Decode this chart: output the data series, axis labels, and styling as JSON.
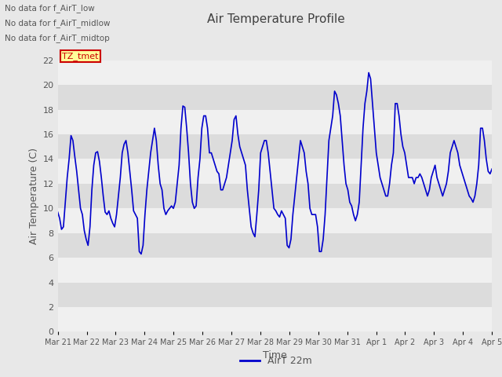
{
  "title": "Air Temperature Profile",
  "xlabel": "Time",
  "ylabel": "Air Temperature (C)",
  "line_color": "#0000CC",
  "line_width": 1.2,
  "ylim": [
    0,
    22
  ],
  "yticks": [
    0,
    2,
    4,
    6,
    8,
    10,
    12,
    14,
    16,
    18,
    20,
    22
  ],
  "bg_color": "#E8E8E8",
  "plot_bg_color": "#FFFFFF",
  "legend_label": "AirT 22m",
  "no_data_texts": [
    "No data for f_AirT_low",
    "No data for f_AirT_midlow",
    "No data for f_AirT_midtop"
  ],
  "legend_box_color": "#FFFF99",
  "legend_box_edge": "#CC0000",
  "legend_text_color": "#CC0000",
  "legend_box_text": "TZ_tmet",
  "x_tick_labels": [
    "Mar 21",
    "Mar 22",
    "Mar 23",
    "Mar 24",
    "Mar 25",
    "Mar 26",
    "Mar 27",
    "Mar 28",
    "Mar 29",
    "Mar 30",
    "Mar 31",
    "Apr 1",
    "Apr 2",
    "Apr 3",
    "Apr 4",
    "Apr 5"
  ],
  "title_color": "#404040",
  "axis_label_color": "#555555",
  "tick_label_color": "#555555",
  "band_colors": [
    "#F0F0F0",
    "#DCDCDC"
  ],
  "values": [
    9.7,
    9.2,
    8.3,
    8.5,
    10.5,
    12.5,
    14.0,
    15.9,
    15.5,
    14.2,
    13.0,
    11.5,
    10.0,
    9.5,
    8.2,
    7.5,
    7.0,
    8.5,
    11.5,
    13.5,
    14.5,
    14.6,
    13.8,
    12.5,
    11.0,
    9.7,
    9.5,
    9.8,
    9.2,
    8.8,
    8.5,
    9.5,
    11.0,
    12.5,
    14.5,
    15.2,
    15.5,
    14.5,
    13.0,
    11.5,
    9.8,
    9.5,
    9.2,
    6.5,
    6.3,
    7.0,
    9.5,
    11.5,
    13.0,
    14.5,
    15.5,
    16.5,
    15.5,
    13.5,
    12.0,
    11.5,
    10.0,
    9.5,
    9.8,
    10.0,
    10.2,
    10.0,
    10.5,
    12.0,
    13.5,
    16.5,
    18.3,
    18.2,
    16.5,
    14.5,
    12.0,
    10.5,
    10.0,
    10.2,
    12.5,
    14.0,
    16.5,
    17.5,
    17.5,
    16.5,
    14.5,
    14.5,
    14.0,
    13.5,
    13.0,
    12.8,
    11.5,
    11.5,
    12.0,
    12.5,
    13.5,
    14.5,
    15.5,
    17.2,
    17.5,
    16.0,
    15.0,
    14.5,
    14.0,
    13.5,
    11.5,
    10.0,
    8.5,
    8.0,
    7.7,
    9.5,
    11.5,
    14.5,
    15.0,
    15.5,
    15.5,
    14.5,
    13.0,
    11.5,
    10.0,
    9.8,
    9.5,
    9.3,
    9.8,
    9.5,
    9.2,
    7.0,
    6.8,
    7.5,
    9.5,
    11.0,
    12.5,
    14.0,
    15.5,
    15.0,
    14.5,
    13.0,
    12.0,
    10.0,
    9.5,
    9.5,
    9.5,
    8.5,
    6.5,
    6.5,
    7.5,
    9.5,
    12.5,
    15.5,
    16.5,
    17.5,
    19.5,
    19.2,
    18.5,
    17.5,
    15.5,
    13.5,
    12.0,
    11.5,
    10.5,
    10.2,
    9.5,
    9.0,
    9.5,
    10.5,
    13.5,
    16.5,
    18.5,
    19.5,
    21.0,
    20.5,
    18.5,
    16.5,
    14.5,
    13.5,
    12.5,
    12.0,
    11.5,
    11.0,
    11.0,
    12.0,
    13.5,
    14.5,
    18.5,
    18.5,
    17.5,
    16.0,
    15.0,
    14.5,
    13.5,
    12.5,
    12.5,
    12.5,
    12.0,
    12.5,
    12.5,
    12.8,
    12.5,
    12.0,
    11.5,
    11.0,
    11.5,
    12.5,
    13.0,
    13.5,
    12.5,
    12.0,
    11.5,
    11.0,
    11.5,
    12.0,
    13.0,
    14.5,
    15.0,
    15.5,
    15.0,
    14.5,
    13.5,
    13.0,
    12.5,
    12.0,
    11.5,
    11.0,
    10.8,
    10.5,
    11.0,
    12.0,
    13.5,
    16.5,
    16.5,
    15.5,
    14.0,
    13.0,
    12.8,
    13.2
  ]
}
